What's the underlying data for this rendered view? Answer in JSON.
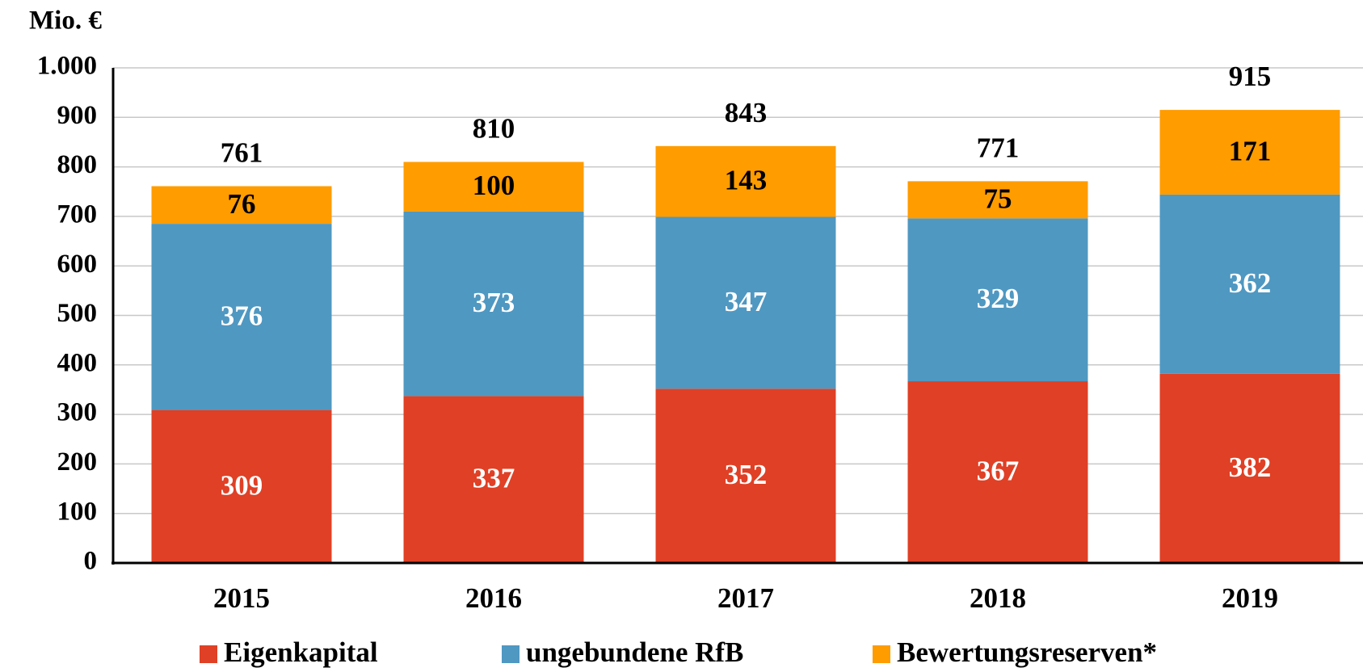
{
  "chart_data": {
    "type": "stacked_bar",
    "y_axis_label": "Mio. €",
    "categories": [
      "2015",
      "2016",
      "2017",
      "2018",
      "2019"
    ],
    "series": [
      {
        "name": "Eigenkapital",
        "color": "#e04025",
        "values": [
          309,
          337,
          352,
          367,
          382
        ]
      },
      {
        "name": "ungebundene RfB",
        "color": "#4f98c2",
        "values": [
          376,
          373,
          347,
          329,
          362
        ]
      },
      {
        "name": "Bewertungsreserven*",
        "color": "#ff9c00",
        "values": [
          76,
          100,
          143,
          75,
          171
        ]
      }
    ],
    "totals": [
      761,
      810,
      843,
      771,
      915
    ],
    "ylim": [
      0,
      1000
    ],
    "yticks": [
      0,
      100,
      200,
      300,
      400,
      500,
      600,
      700,
      800,
      900,
      {
        "value": 1000,
        "label": "1.000"
      }
    ],
    "grid": true,
    "legend": "bottom"
  }
}
